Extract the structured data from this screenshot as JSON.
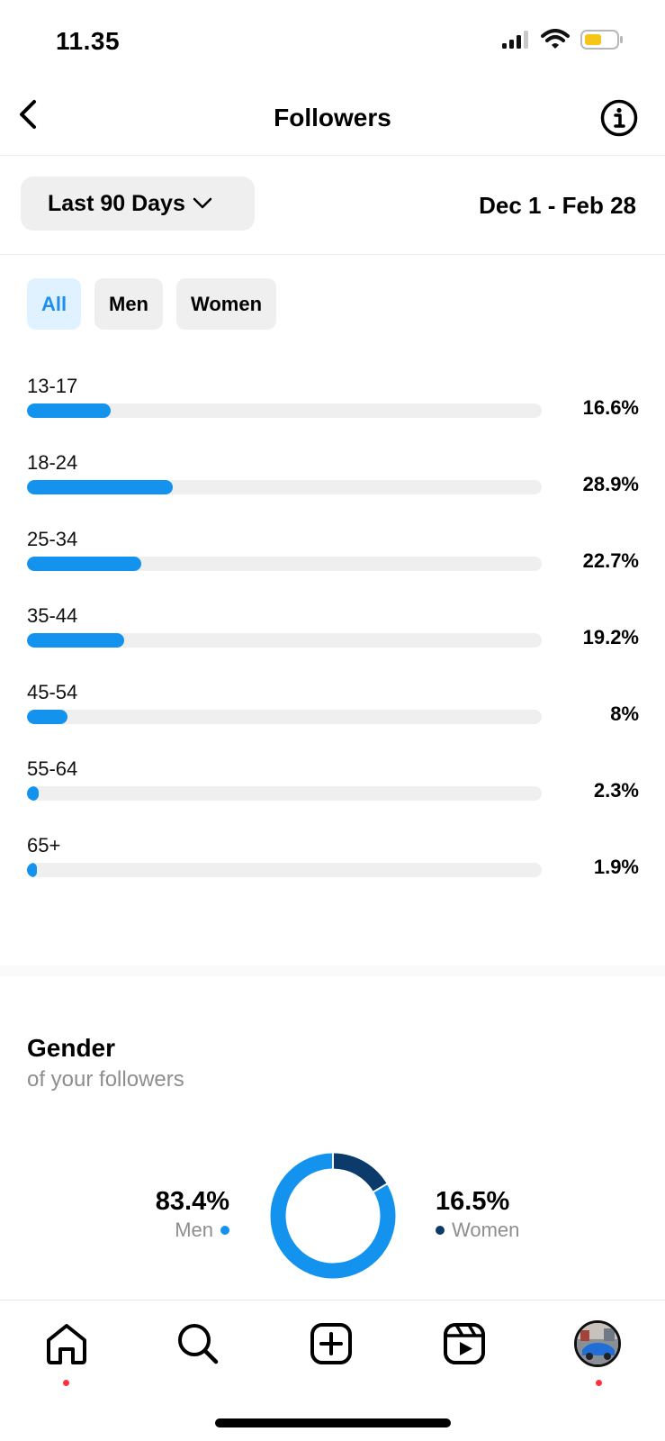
{
  "status_bar": {
    "time": "11.35"
  },
  "header": {
    "title": "Followers"
  },
  "range": {
    "selected": "Last 90 Days",
    "dates": "Dec 1 - Feb 28"
  },
  "filters": [
    "All",
    "Men",
    "Women"
  ],
  "age_groups": [
    {
      "label": "13-17",
      "pct_text": "16.6%",
      "value": 16.6
    },
    {
      "label": "18-24",
      "pct_text": "28.9%",
      "value": 28.9
    },
    {
      "label": "25-34",
      "pct_text": "22.7%",
      "value": 22.7
    },
    {
      "label": "35-44",
      "pct_text": "19.2%",
      "value": 19.2
    },
    {
      "label": "45-54",
      "pct_text": "8%",
      "value": 8
    },
    {
      "label": "55-64",
      "pct_text": "2.3%",
      "value": 2.3
    },
    {
      "label": "65+",
      "pct_text": "1.9%",
      "value": 1.9
    }
  ],
  "gender": {
    "title": "Gender",
    "subtitle": "of your followers",
    "men": {
      "pct_text": "83.4%",
      "label": "Men",
      "value": 83.4
    },
    "women": {
      "pct_text": "16.5%",
      "label": "Women",
      "value": 16.5
    }
  },
  "colors": {
    "accent": "#1493ee",
    "women": "#0b3a6b",
    "track": "#efefef",
    "notification": "#ff3040"
  },
  "tabs": [
    {
      "icon": "home-icon",
      "has_dot": true
    },
    {
      "icon": "search-icon",
      "has_dot": false
    },
    {
      "icon": "create-icon",
      "has_dot": false
    },
    {
      "icon": "reels-icon",
      "has_dot": false
    },
    {
      "icon": "profile-avatar",
      "has_dot": true
    }
  ]
}
